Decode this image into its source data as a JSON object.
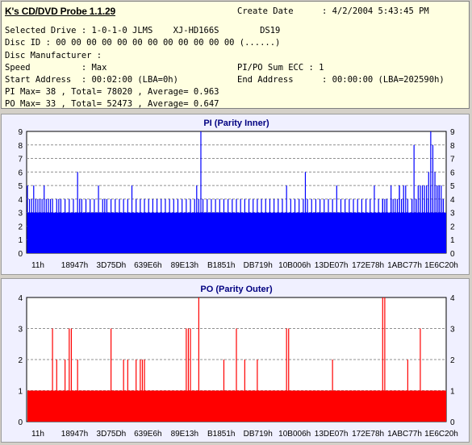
{
  "app": {
    "title": "K's CD/DVD Probe 1.1.29"
  },
  "info": {
    "create_date_label": "Create Date",
    "create_date_value": ": 4/2/2004 5:43:45 PM",
    "selected_drive": "Selected Drive : 1-0-1-0 JLMS    XJ-HD166S        DS19",
    "disc_id": "Disc ID : 00 00 00 00 00 00 00 00 00 00 00 00 (......)",
    "disc_manufacturer": "Disc Manufacturer :",
    "speed": "Speed          : Max",
    "pipo_sum": "PI/PO Sum ECC : 1",
    "start_address": "Start Address  : 00:02:00 (LBA=0h)",
    "end_address_label": "End Address",
    "end_address_value": ": 00:00:00 (LBA=202590h)",
    "pi_stats": "PI Max= 38 , Total= 78020 , Average= 0.963",
    "po_stats": "PO Max= 33 , Total= 52473 , Average= 0.647"
  },
  "chart_data": [
    {
      "type": "bar",
      "title": "PI (Parity Inner)",
      "color": "#0000ff",
      "ylim": [
        0,
        9
      ],
      "y_ticks": [
        0,
        1,
        2,
        3,
        4,
        5,
        6,
        7,
        8,
        9
      ],
      "x_tick_labels": [
        "11h",
        "18947h",
        "3D75Dh",
        "639E6h",
        "89E13h",
        "B1851h",
        "DB719h",
        "10B006h",
        "13DE07h",
        "172E78h",
        "1ABC77h",
        "1E6C20h"
      ],
      "baseline": 3,
      "spikes": [
        [
          0.0,
          5
        ],
        [
          0.005,
          4
        ],
        [
          0.01,
          4
        ],
        [
          0.015,
          5
        ],
        [
          0.02,
          4
        ],
        [
          0.025,
          4
        ],
        [
          0.03,
          4
        ],
        [
          0.035,
          4
        ],
        [
          0.04,
          5
        ],
        [
          0.045,
          4
        ],
        [
          0.05,
          4
        ],
        [
          0.055,
          4
        ],
        [
          0.06,
          4
        ],
        [
          0.07,
          4
        ],
        [
          0.075,
          4
        ],
        [
          0.08,
          4
        ],
        [
          0.09,
          4
        ],
        [
          0.1,
          4
        ],
        [
          0.11,
          4
        ],
        [
          0.12,
          6
        ],
        [
          0.125,
          4
        ],
        [
          0.13,
          4
        ],
        [
          0.14,
          4
        ],
        [
          0.15,
          4
        ],
        [
          0.16,
          4
        ],
        [
          0.17,
          5
        ],
        [
          0.18,
          4
        ],
        [
          0.185,
          4
        ],
        [
          0.19,
          4
        ],
        [
          0.2,
          4
        ],
        [
          0.21,
          4
        ],
        [
          0.22,
          4
        ],
        [
          0.23,
          4
        ],
        [
          0.24,
          4
        ],
        [
          0.25,
          5
        ],
        [
          0.26,
          4
        ],
        [
          0.27,
          4
        ],
        [
          0.28,
          4
        ],
        [
          0.29,
          4
        ],
        [
          0.3,
          4
        ],
        [
          0.31,
          4
        ],
        [
          0.32,
          4
        ],
        [
          0.33,
          4
        ],
        [
          0.34,
          4
        ],
        [
          0.35,
          4
        ],
        [
          0.36,
          4
        ],
        [
          0.37,
          4
        ],
        [
          0.38,
          4
        ],
        [
          0.39,
          4
        ],
        [
          0.4,
          4
        ],
        [
          0.405,
          5
        ],
        [
          0.41,
          4
        ],
        [
          0.415,
          9
        ],
        [
          0.42,
          4
        ],
        [
          0.43,
          4
        ],
        [
          0.44,
          4
        ],
        [
          0.45,
          4
        ],
        [
          0.46,
          4
        ],
        [
          0.47,
          4
        ],
        [
          0.48,
          4
        ],
        [
          0.49,
          4
        ],
        [
          0.5,
          4
        ],
        [
          0.51,
          4
        ],
        [
          0.52,
          4
        ],
        [
          0.53,
          4
        ],
        [
          0.54,
          4
        ],
        [
          0.55,
          4
        ],
        [
          0.56,
          4
        ],
        [
          0.57,
          4
        ],
        [
          0.58,
          4
        ],
        [
          0.59,
          4
        ],
        [
          0.6,
          4
        ],
        [
          0.61,
          4
        ],
        [
          0.62,
          5
        ],
        [
          0.63,
          4
        ],
        [
          0.64,
          4
        ],
        [
          0.65,
          4
        ],
        [
          0.66,
          4
        ],
        [
          0.665,
          6
        ],
        [
          0.67,
          4
        ],
        [
          0.68,
          4
        ],
        [
          0.69,
          4
        ],
        [
          0.7,
          4
        ],
        [
          0.71,
          4
        ],
        [
          0.72,
          4
        ],
        [
          0.73,
          4
        ],
        [
          0.74,
          5
        ],
        [
          0.75,
          4
        ],
        [
          0.76,
          4
        ],
        [
          0.77,
          4
        ],
        [
          0.78,
          4
        ],
        [
          0.79,
          4
        ],
        [
          0.8,
          4
        ],
        [
          0.81,
          4
        ],
        [
          0.82,
          4
        ],
        [
          0.83,
          5
        ],
        [
          0.84,
          4
        ],
        [
          0.85,
          4
        ],
        [
          0.86,
          4
        ],
        [
          0.87,
          4
        ],
        [
          0.88,
          4
        ],
        [
          0.89,
          5
        ],
        [
          0.9,
          4
        ],
        [
          0.905,
          5
        ],
        [
          0.91,
          4
        ],
        [
          0.92,
          4
        ],
        [
          0.93,
          4
        ],
        [
          0.94,
          5
        ],
        [
          0.95,
          5
        ],
        [
          0.955,
          5
        ],
        [
          0.96,
          6
        ],
        [
          0.965,
          5
        ],
        [
          0.97,
          4
        ],
        [
          0.975,
          5
        ],
        [
          0.98,
          5
        ],
        [
          0.985,
          5
        ],
        [
          0.99,
          4
        ],
        [
          0.995,
          4
        ],
        [
          0.85,
          4
        ],
        [
          0.855,
          4
        ],
        [
          0.86,
          4
        ],
        [
          0.87,
          5
        ],
        [
          0.875,
          4
        ],
        [
          0.885,
          4
        ],
        [
          0.89,
          5
        ],
        [
          0.895,
          4
        ],
        [
          0.9,
          5
        ],
        [
          0.92,
          4
        ],
        [
          0.925,
          8
        ],
        [
          0.93,
          4
        ],
        [
          0.935,
          5
        ],
        [
          0.94,
          4
        ],
        [
          0.945,
          5
        ],
        [
          0.95,
          4
        ],
        [
          0.955,
          4
        ],
        [
          0.96,
          4
        ],
        [
          0.965,
          9
        ],
        [
          0.97,
          8
        ],
        [
          0.975,
          6
        ],
        [
          0.98,
          5
        ],
        [
          0.985,
          5
        ],
        [
          0.99,
          5
        ],
        [
          0.995,
          4
        ]
      ]
    },
    {
      "type": "bar",
      "title": "PO (Parity Outer)",
      "color": "#ff0000",
      "ylim": [
        0,
        4
      ],
      "y_ticks": [
        0,
        1,
        2,
        3,
        4
      ],
      "x_tick_labels": [
        "11h",
        "18947h",
        "3D75Dh",
        "639E6h",
        "89E13h",
        "B1851h",
        "DB719h",
        "10B006h",
        "13DE07h",
        "172E78h",
        "1ABC77h",
        "1E6C20h"
      ],
      "baseline": 1,
      "spikes": [
        [
          0.06,
          3
        ],
        [
          0.07,
          2
        ],
        [
          0.09,
          2
        ],
        [
          0.1,
          3
        ],
        [
          0.105,
          3
        ],
        [
          0.12,
          2
        ],
        [
          0.2,
          3
        ],
        [
          0.23,
          2
        ],
        [
          0.24,
          2
        ],
        [
          0.26,
          2
        ],
        [
          0.27,
          2
        ],
        [
          0.275,
          2
        ],
        [
          0.28,
          2
        ],
        [
          0.38,
          3
        ],
        [
          0.385,
          3
        ],
        [
          0.39,
          3
        ],
        [
          0.41,
          4
        ],
        [
          0.47,
          2
        ],
        [
          0.5,
          3
        ],
        [
          0.52,
          2
        ],
        [
          0.55,
          2
        ],
        [
          0.62,
          3
        ],
        [
          0.625,
          3
        ],
        [
          0.73,
          2
        ],
        [
          0.85,
          4
        ],
        [
          0.855,
          4
        ],
        [
          0.91,
          2
        ],
        [
          0.94,
          3
        ]
      ]
    }
  ]
}
